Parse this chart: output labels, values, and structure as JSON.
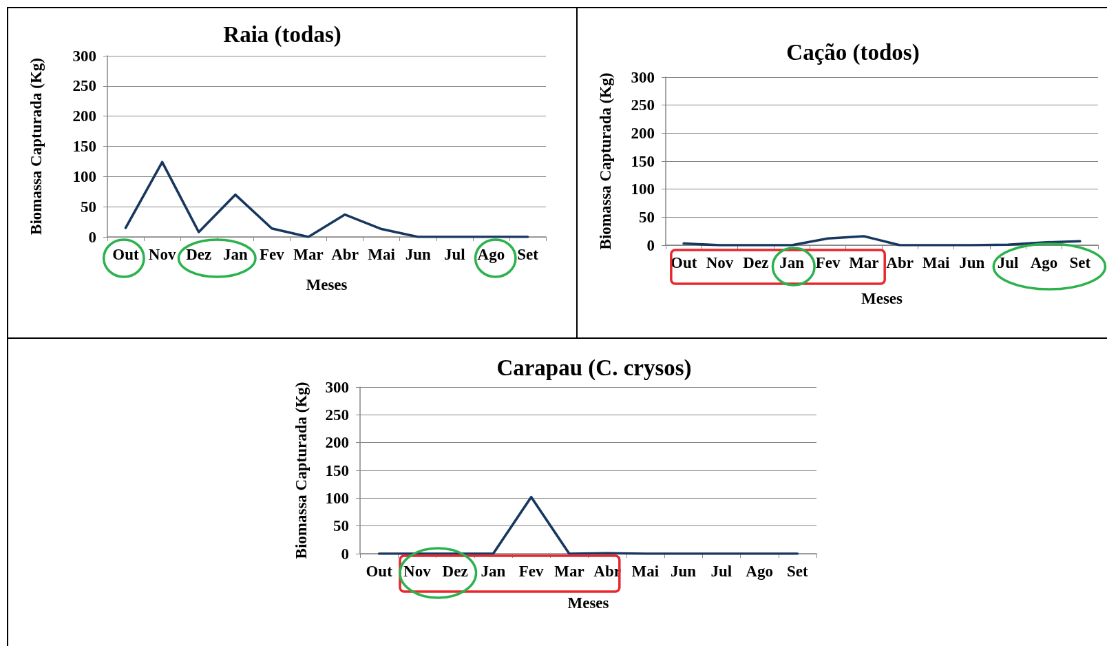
{
  "chart_data": [
    {
      "type": "line",
      "title": "Raia (todas)",
      "xlabel": "Meses",
      "ylabel": "Biomassa Capturada (Kg)",
      "categories": [
        "Out",
        "Nov",
        "Dez",
        "Jan",
        "Fev",
        "Mar",
        "Abr",
        "Mai",
        "Jun",
        "Jul",
        "Ago",
        "Set"
      ],
      "values": [
        15,
        124,
        8,
        70,
        14,
        0,
        37,
        13,
        0,
        0,
        0,
        0
      ],
      "color": "#17375e",
      "ylim": [
        0,
        300
      ],
      "yticks": [
        0,
        50,
        100,
        150,
        200,
        250,
        300
      ],
      "grid": "y",
      "marker": "none",
      "line_style": "solid"
    },
    {
      "type": "line",
      "title": "Cação (todos)",
      "xlabel": "Meses",
      "ylabel": "Biomassa Capturada (Kg)",
      "categories": [
        "Out",
        "Nov",
        "Dez",
        "Jan",
        "Fev",
        "Mar",
        "Abr",
        "Mai",
        "Jun",
        "Jul",
        "Ago",
        "Set"
      ],
      "values": [
        3,
        0,
        0,
        0,
        12,
        16,
        0,
        0,
        0,
        1,
        5,
        7
      ],
      "color": "#17375e",
      "ylim": [
        0,
        300
      ],
      "yticks": [
        0,
        50,
        100,
        150,
        200,
        250,
        300
      ],
      "grid": "y",
      "marker": "none",
      "line_style": "solid"
    },
    {
      "type": "line",
      "title": "Carapau (C. crysos)",
      "xlabel": "Meses",
      "ylabel": "Biomassa Capturada (Kg)",
      "categories": [
        "Out",
        "Nov",
        "Dez",
        "Jan",
        "Fev",
        "Mar",
        "Abr",
        "Mai",
        "Jun",
        "Jul",
        "Ago",
        "Set"
      ],
      "values": [
        0,
        0,
        0,
        0,
        102,
        0,
        1,
        0,
        0,
        0,
        0,
        0
      ],
      "color": "#17375e",
      "ylim": [
        0,
        300
      ],
      "yticks": [
        0,
        50,
        100,
        150,
        200,
        250,
        300
      ],
      "grid": "y",
      "marker": "none",
      "line_style": "solid"
    }
  ]
}
